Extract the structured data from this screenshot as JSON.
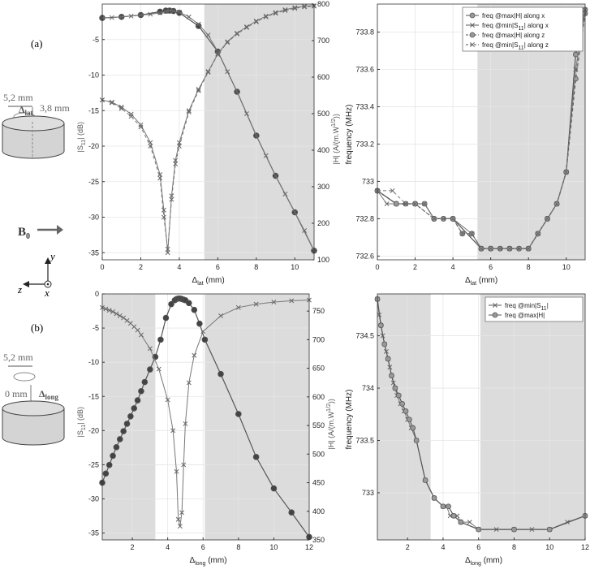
{
  "panels": {
    "a_label": "(a)",
    "b_label": "(b)",
    "a_dim_top": "5,2 mm",
    "a_dim_side": "3,8 mm",
    "a_dim_delta_base": "Δ",
    "a_dim_delta_sub": "lat",
    "b_dim_top": "5,2 mm",
    "b_dim_left": "0 mm",
    "b_dim_delta_base": "Δ",
    "b_dim_delta_sub": "long",
    "b0_base": "B",
    "b0_sub": "0",
    "axis_y": "y",
    "axis_z": "z",
    "axis_x": "x"
  },
  "chart_data": [
    {
      "id": "a-left",
      "type": "line",
      "xlabel_base": "Δ",
      "xlabel_sub": "lat",
      "xlabel_unit": " (mm)",
      "ylabel_left": {
        "a": "|S",
        "sub": "11",
        "b": "| (dB)"
      },
      "ylabel_right": {
        "a": "|H| (A/(m.W",
        "sup": "1/2",
        "b": "))"
      },
      "xlim": [
        0,
        11
      ],
      "ylim_left": [
        -36,
        0
      ],
      "ylim_right": [
        100,
        800
      ],
      "xticks": [
        0,
        2,
        4,
        6,
        8,
        10
      ],
      "yticks_left": [
        -5,
        -10,
        -15,
        -20,
        -25,
        -30,
        -35
      ],
      "yticks_right": [
        100,
        200,
        300,
        400,
        500,
        600,
        700,
        800
      ],
      "shaded": [
        [
          5.3,
          11
        ]
      ],
      "series": [
        {
          "axis": "right",
          "marker": "o",
          "dash": false,
          "x": [
            0,
            1,
            2,
            3,
            3.3,
            3.5,
            3.7,
            4,
            5,
            6,
            7,
            8,
            9,
            10,
            11
          ],
          "y": [
            762,
            765,
            770,
            779,
            782,
            782,
            781,
            776,
            740,
            670,
            560,
            440,
            330,
            230,
            125
          ]
        },
        {
          "axis": "right",
          "marker": "x",
          "dash": false,
          "x": [
            0,
            0.5,
            1,
            1.5,
            2,
            2.5,
            3,
            3.3,
            3.5,
            3.7,
            4,
            4.5,
            5,
            5.5,
            6,
            6.5,
            7,
            7.5,
            8,
            8.5,
            9,
            9.5,
            10,
            10.5,
            11
          ],
          "y": [
            762,
            763,
            765,
            767,
            770,
            772,
            776,
            780,
            782,
            781,
            778,
            765,
            745,
            715,
            670,
            615,
            560,
            500,
            440,
            385,
            330,
            280,
            230,
            180,
            125
          ]
        },
        {
          "axis": "left",
          "marker": "x",
          "dash": false,
          "x": [
            0,
            0.5,
            1,
            1.5,
            2,
            2.5,
            3,
            3.2,
            3.4,
            3.6,
            3.8,
            4,
            4.5,
            5,
            5.5,
            6,
            6.5,
            7,
            7.5,
            8,
            8.5,
            9,
            9.5,
            10,
            10.5,
            11
          ],
          "y": [
            -13.5,
            -13.8,
            -14.5,
            -15.5,
            -17,
            -19.5,
            -24,
            -29,
            -35,
            -27,
            -22,
            -19.5,
            -15,
            -12,
            -9.5,
            -7,
            -5.3,
            -4.1,
            -3.2,
            -2.4,
            -1.7,
            -1.2,
            -0.8,
            -0.5,
            -0.3,
            -0.2
          ]
        },
        {
          "axis": "left",
          "marker": "x",
          "dash": true,
          "x": [
            0,
            0.5,
            1,
            1.5,
            2,
            2.5,
            3,
            3.2,
            3.4,
            3.6,
            3.8,
            4,
            4.5,
            5,
            5.5,
            6,
            6.5,
            7,
            7.5,
            8,
            8.5,
            9,
            9.5,
            10,
            10.5,
            11
          ],
          "y": [
            -13.5,
            -13.9,
            -14.7,
            -15.8,
            -17.3,
            -20,
            -24.5,
            -30,
            -34.5,
            -27.5,
            -22.5,
            -20,
            -15.2,
            -12.2,
            -9.6,
            -7.1,
            -5.4,
            -4.2,
            -3.3,
            -2.5,
            -1.8,
            -1.3,
            -0.9,
            -0.6,
            -0.4,
            -0.3
          ]
        }
      ]
    },
    {
      "id": "a-right",
      "type": "line",
      "xlabel_base": "Δ",
      "xlabel_sub": "lat",
      "xlabel_unit": " (mm)",
      "ylabel": "frequency (MHz)",
      "xlim": [
        0,
        11
      ],
      "ylim": [
        732.58,
        733.95
      ],
      "xticks": [
        0,
        2,
        4,
        6,
        8,
        10
      ],
      "yticks": [
        732.6,
        732.8,
        733,
        733.2,
        733.4,
        733.6,
        733.8
      ],
      "shaded": [
        [
          5.3,
          11
        ]
      ],
      "legend": [
        {
          "a": "freq @max|H| along x",
          "marker": "o",
          "dash": false
        },
        {
          "a": "freq @min|S",
          "sub": "11",
          "b": "| along x",
          "marker": "x",
          "dash": false
        },
        {
          "a": "freq @max|H| along z",
          "marker": "o",
          "dash": true
        },
        {
          "a": "freq @min|S",
          "sub": "11",
          "b": "| along z",
          "marker": "x",
          "dash": true
        }
      ],
      "series": [
        {
          "marker": "o",
          "dash": false,
          "x": [
            0,
            1,
            1.5,
            2,
            2.5,
            3,
            3.5,
            4,
            5.5,
            6,
            6.5,
            7,
            7.5,
            8,
            8.5,
            9,
            9.5,
            10,
            10.5,
            11
          ],
          "y": [
            732.95,
            732.88,
            732.88,
            732.88,
            732.88,
            732.8,
            732.8,
            732.8,
            732.64,
            732.64,
            732.64,
            732.64,
            732.64,
            732.64,
            732.72,
            732.8,
            732.88,
            733.05,
            733.68,
            733.92
          ]
        },
        {
          "marker": "x",
          "dash": false,
          "x": [
            0,
            0.5,
            1,
            1.5,
            2,
            2.5,
            3,
            3.5,
            4,
            5,
            5.5,
            6,
            6.5,
            7,
            7.5,
            8,
            8.5,
            9,
            9.5,
            10,
            10.5,
            11
          ],
          "y": [
            732.95,
            732.88,
            732.88,
            732.88,
            732.88,
            732.88,
            732.8,
            732.8,
            732.8,
            732.72,
            732.64,
            732.64,
            732.64,
            732.64,
            732.64,
            732.64,
            732.72,
            732.8,
            732.88,
            733.05,
            733.6,
            733.92
          ]
        },
        {
          "marker": "o",
          "dash": true,
          "x": [
            0,
            1,
            2,
            3,
            4,
            4.5,
            5,
            5.5,
            6,
            7,
            8,
            8.5,
            9,
            9.5,
            10,
            10.5,
            11
          ],
          "y": [
            732.95,
            732.88,
            732.88,
            732.8,
            732.8,
            732.72,
            732.72,
            732.64,
            732.64,
            732.64,
            732.64,
            732.72,
            732.8,
            732.88,
            733.05,
            733.55,
            733.9
          ]
        },
        {
          "marker": "x",
          "dash": true,
          "x": [
            0,
            0.8,
            1.5,
            2,
            3,
            4,
            4.5,
            5,
            5.5,
            6,
            7,
            8,
            8.5,
            9,
            9.5,
            10,
            10.5,
            11
          ],
          "y": [
            732.95,
            732.95,
            732.88,
            732.88,
            732.8,
            732.8,
            732.72,
            732.72,
            732.64,
            732.64,
            732.64,
            732.64,
            732.72,
            732.8,
            732.88,
            733.05,
            733.6,
            733.9
          ]
        }
      ]
    },
    {
      "id": "b-left",
      "type": "line",
      "xlabel_base": "Δ",
      "xlabel_sub": "long",
      "xlabel_unit": " (mm)",
      "ylabel_left": {
        "a": "|S",
        "sub": "11",
        "b": "| (dB)"
      },
      "ylabel_right": {
        "a": "|H| (A/(m.W",
        "sup": "1/2",
        "b": "))"
      },
      "xlim": [
        0.3,
        12
      ],
      "ylim_left": [
        -36,
        0
      ],
      "ylim_right": [
        350,
        780
      ],
      "xticks": [
        2,
        4,
        6,
        8,
        10,
        12
      ],
      "yticks_left": [
        0,
        -5,
        -10,
        -15,
        -20,
        -25,
        -30,
        -35
      ],
      "yticks_right": [
        350,
        400,
        450,
        500,
        550,
        600,
        650,
        700,
        750
      ],
      "shaded": [
        [
          0.3,
          3.3
        ],
        [
          6.1,
          12
        ]
      ],
      "series": [
        {
          "axis": "right",
          "marker": "o",
          "dash": false,
          "x": [
            0.3,
            0.5,
            0.7,
            0.9,
            1.1,
            1.3,
            1.5,
            1.7,
            1.9,
            2.1,
            2.3,
            2.5,
            2.7,
            3.0,
            3.3,
            3.6,
            3.9,
            4.2,
            4.4,
            4.5,
            4.6,
            4.7,
            4.8,
            4.9,
            5.0,
            5.2,
            5.5,
            5.8,
            6.1,
            7,
            8,
            9,
            10,
            11,
            12
          ],
          "y": [
            450,
            466,
            481,
            497,
            512,
            526,
            540,
            553,
            566,
            580,
            594,
            610,
            626,
            648,
            670,
            700,
            738,
            762,
            769,
            771,
            772,
            772,
            771,
            770,
            769,
            764,
            752,
            728,
            700,
            640,
            570,
            495,
            440,
            398,
            355
          ]
        },
        {
          "axis": "left",
          "marker": "x",
          "dash": false,
          "x": [
            0.3,
            0.5,
            0.7,
            0.9,
            1.1,
            1.3,
            1.5,
            1.7,
            1.9,
            2.1,
            2.3,
            2.5,
            3,
            3.5,
            4,
            4.3,
            4.5,
            4.6,
            4.7,
            4.8,
            4.9,
            5.0,
            5.2,
            5.5,
            6,
            7,
            8,
            9,
            10,
            11,
            12
          ],
          "y": [
            -2,
            -2.2,
            -2.4,
            -2.6,
            -2.9,
            -3.2,
            -3.5,
            -3.9,
            -4.3,
            -4.8,
            -5.3,
            -6,
            -8,
            -11,
            -15.5,
            -20,
            -26,
            -33,
            -34,
            -32,
            -25,
            -19,
            -13,
            -9,
            -5.5,
            -3.2,
            -2,
            -1.5,
            -1.2,
            -1,
            -0.9
          ]
        }
      ]
    },
    {
      "id": "b-right",
      "type": "line",
      "xlabel_base": "Δ",
      "xlabel_sub": "long",
      "xlabel_unit": " (mm)",
      "ylabel": "frequency (MHz)",
      "xlim": [
        0.3,
        12
      ],
      "ylim": [
        732.55,
        734.9
      ],
      "xticks": [
        2,
        4,
        6,
        8,
        10,
        12
      ],
      "yticks": [
        733,
        733.5,
        734,
        734.5
      ],
      "shaded": [
        [
          0.3,
          3.3
        ],
        [
          6.1,
          12
        ]
      ],
      "legend": [
        {
          "a": "freq @min|S",
          "sub": "11",
          "b": "|",
          "marker": "x",
          "dash": false
        },
        {
          "a": "freq @max|H|",
          "marker": "o",
          "dash": false
        }
      ],
      "series": [
        {
          "marker": "x",
          "dash": false,
          "x": [
            0.3,
            0.4,
            0.5,
            0.6,
            0.7,
            0.8,
            0.9,
            1.0,
            1.1,
            1.2,
            1.3,
            1.4,
            1.6,
            1.8,
            2.0,
            2.2,
            2.5,
            3.0,
            3.5,
            4.0,
            4.2,
            4.4,
            4.6,
            4.8,
            5.0,
            5.5,
            6,
            7,
            8,
            9,
            10,
            11,
            12
          ],
          "y": [
            734.85,
            734.7,
            734.6,
            734.5,
            734.42,
            734.35,
            734.28,
            734.2,
            734.12,
            734.05,
            734.0,
            733.93,
            733.85,
            733.78,
            733.7,
            733.62,
            733.5,
            733.12,
            732.95,
            732.87,
            732.87,
            732.78,
            732.78,
            732.78,
            732.72,
            732.72,
            732.65,
            732.65,
            732.65,
            732.65,
            732.65,
            732.72,
            732.78
          ]
        },
        {
          "marker": "o",
          "dash": false,
          "x": [
            0.3,
            0.5,
            0.7,
            0.9,
            1.1,
            1.3,
            1.5,
            1.7,
            1.9,
            2.1,
            2.3,
            2.5,
            3,
            3.5,
            4,
            4.3,
            4.6,
            5,
            6,
            8,
            10,
            12
          ],
          "y": [
            734.85,
            734.6,
            734.42,
            734.28,
            734.12,
            734.0,
            733.93,
            733.85,
            733.78,
            733.7,
            733.62,
            733.5,
            733.12,
            732.95,
            732.87,
            732.87,
            732.78,
            732.72,
            732.65,
            732.65,
            732.65,
            732.78
          ]
        }
      ]
    }
  ]
}
